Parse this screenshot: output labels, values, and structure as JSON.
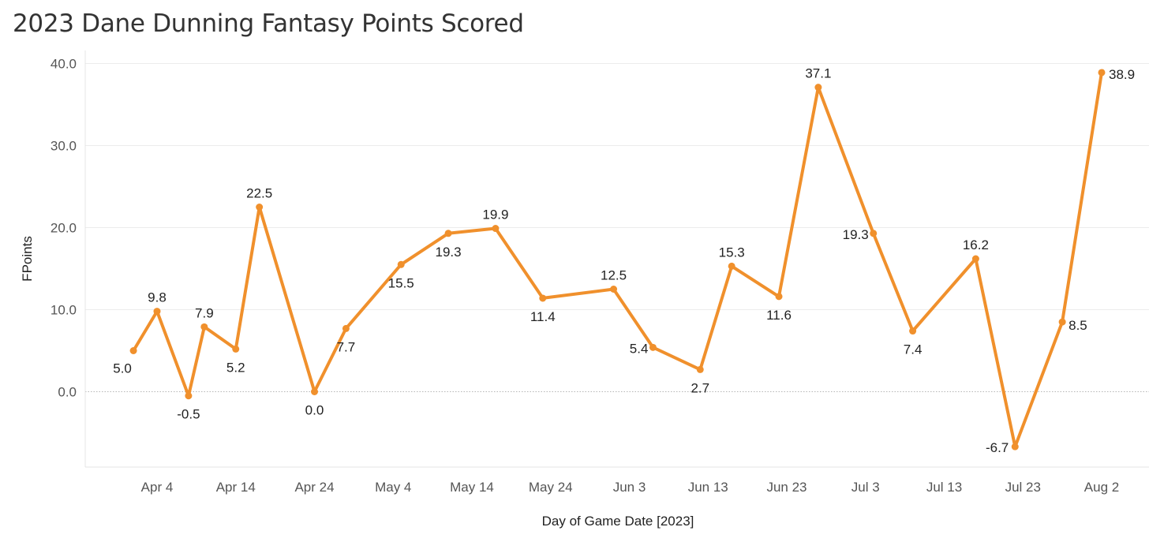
{
  "chart_data": {
    "type": "line",
    "title": "2023 Dane Dunning Fantasy Points Scored",
    "xlabel": "Day of Game Date [2023]",
    "ylabel": "FPoints",
    "x_tick_labels": [
      "Apr 4",
      "Apr 14",
      "Apr 24",
      "May 4",
      "May 14",
      "May 24",
      "Jun 3",
      "Jun 13",
      "Jun 23",
      "Jul 3",
      "Jul 13",
      "Jul 23",
      "Aug 2"
    ],
    "y_tick_labels": [
      "40.0",
      "30.0",
      "20.0",
      "10.0",
      "0.0"
    ],
    "ylim": [
      -9,
      42
    ],
    "grid": true,
    "color": "#F0902C",
    "series": [
      {
        "points": [
          {
            "date": "2023-04-01",
            "value": 5.0,
            "label": "5.0"
          },
          {
            "date": "2023-04-04",
            "value": 9.8,
            "label": "9.8"
          },
          {
            "date": "2023-04-08",
            "value": -0.5,
            "label": "-0.5"
          },
          {
            "date": "2023-04-10",
            "value": 7.9,
            "label": "7.9"
          },
          {
            "date": "2023-04-14",
            "value": 5.2,
            "label": "5.2"
          },
          {
            "date": "2023-04-17",
            "value": 22.5,
            "label": "22.5"
          },
          {
            "date": "2023-04-24",
            "value": 0.0,
            "label": "0.0"
          },
          {
            "date": "2023-04-28",
            "value": 7.7,
            "label": "7.7"
          },
          {
            "date": "2023-05-05",
            "value": 15.5,
            "label": "15.5"
          },
          {
            "date": "2023-05-11",
            "value": 19.3,
            "label": "19.3"
          },
          {
            "date": "2023-05-17",
            "value": 19.9,
            "label": "19.9"
          },
          {
            "date": "2023-05-23",
            "value": 11.4,
            "label": "11.4"
          },
          {
            "date": "2023-06-01",
            "value": 12.5,
            "label": "12.5"
          },
          {
            "date": "2023-06-06",
            "value": 5.4,
            "label": "5.4"
          },
          {
            "date": "2023-06-12",
            "value": 2.7,
            "label": "2.7"
          },
          {
            "date": "2023-06-16",
            "value": 15.3,
            "label": "15.3"
          },
          {
            "date": "2023-06-22",
            "value": 11.6,
            "label": "11.6"
          },
          {
            "date": "2023-06-27",
            "value": 37.1,
            "label": "37.1"
          },
          {
            "date": "2023-07-04",
            "value": 19.3,
            "label": "19.3"
          },
          {
            "date": "2023-07-09",
            "value": 7.4,
            "label": "7.4"
          },
          {
            "date": "2023-07-17",
            "value": 16.2,
            "label": "16.2"
          },
          {
            "date": "2023-07-22",
            "value": -6.7,
            "label": "-6.7"
          },
          {
            "date": "2023-07-28",
            "value": 8.5,
            "label": "8.5"
          },
          {
            "date": "2023-08-02",
            "value": 38.9,
            "label": "38.9"
          }
        ]
      }
    ]
  }
}
